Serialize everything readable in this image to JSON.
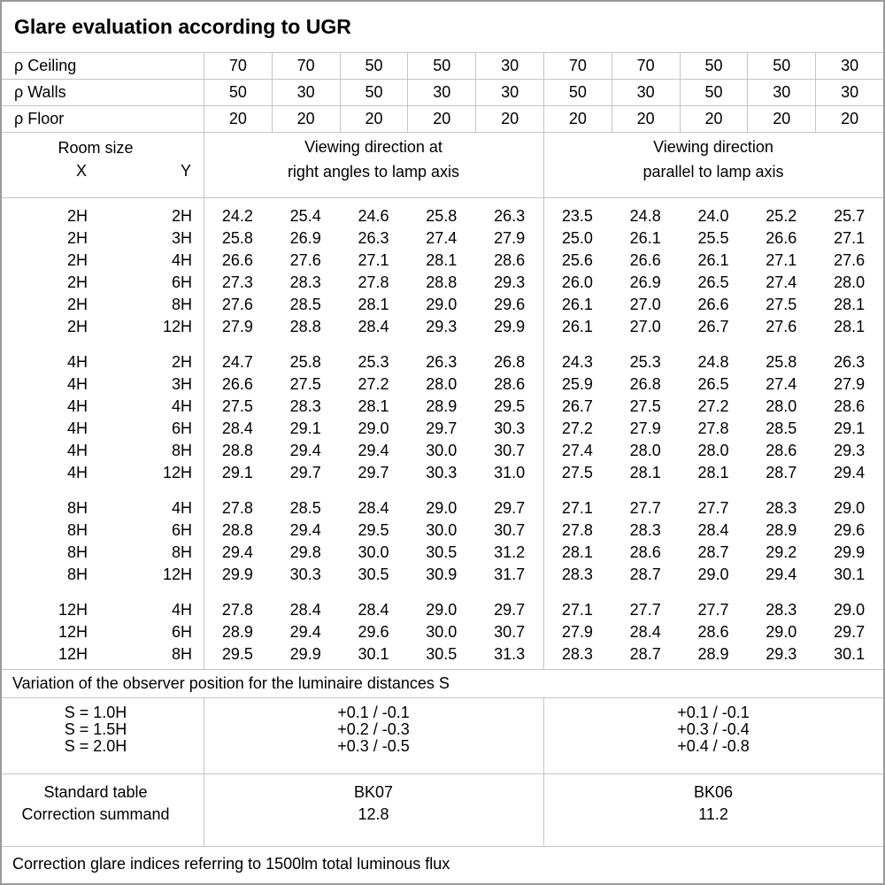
{
  "title": "Glare evaluation according to UGR",
  "reflectance_rows": [
    {
      "label": "ρ Ceiling",
      "values": [
        "70",
        "70",
        "50",
        "50",
        "30",
        "70",
        "70",
        "50",
        "50",
        "30"
      ]
    },
    {
      "label": "ρ Walls",
      "values": [
        "50",
        "30",
        "50",
        "30",
        "30",
        "50",
        "30",
        "50",
        "30",
        "30"
      ]
    },
    {
      "label": "ρ Floor",
      "values": [
        "20",
        "20",
        "20",
        "20",
        "20",
        "20",
        "20",
        "20",
        "20",
        "20"
      ]
    }
  ],
  "header": {
    "room_size_label": "Room size",
    "x_label": "X",
    "y_label": "Y",
    "left_direction": [
      "Viewing direction at",
      "right angles to lamp axis"
    ],
    "right_direction": [
      "Viewing direction",
      "parallel to lamp axis"
    ]
  },
  "ugr_groups": [
    {
      "rows": [
        {
          "x": "2H",
          "y": "2H",
          "values": [
            "24.2",
            "25.4",
            "24.6",
            "25.8",
            "26.3",
            "23.5",
            "24.8",
            "24.0",
            "25.2",
            "25.7"
          ]
        },
        {
          "x": "2H",
          "y": "3H",
          "values": [
            "25.8",
            "26.9",
            "26.3",
            "27.4",
            "27.9",
            "25.0",
            "26.1",
            "25.5",
            "26.6",
            "27.1"
          ]
        },
        {
          "x": "2H",
          "y": "4H",
          "values": [
            "26.6",
            "27.6",
            "27.1",
            "28.1",
            "28.6",
            "25.6",
            "26.6",
            "26.1",
            "27.1",
            "27.6"
          ]
        },
        {
          "x": "2H",
          "y": "6H",
          "values": [
            "27.3",
            "28.3",
            "27.8",
            "28.8",
            "29.3",
            "26.0",
            "26.9",
            "26.5",
            "27.4",
            "28.0"
          ]
        },
        {
          "x": "2H",
          "y": "8H",
          "values": [
            "27.6",
            "28.5",
            "28.1",
            "29.0",
            "29.6",
            "26.1",
            "27.0",
            "26.6",
            "27.5",
            "28.1"
          ]
        },
        {
          "x": "2H",
          "y": "12H",
          "values": [
            "27.9",
            "28.8",
            "28.4",
            "29.3",
            "29.9",
            "26.1",
            "27.0",
            "26.7",
            "27.6",
            "28.1"
          ]
        }
      ]
    },
    {
      "rows": [
        {
          "x": "4H",
          "y": "2H",
          "values": [
            "24.7",
            "25.8",
            "25.3",
            "26.3",
            "26.8",
            "24.3",
            "25.3",
            "24.8",
            "25.8",
            "26.3"
          ]
        },
        {
          "x": "4H",
          "y": "3H",
          "values": [
            "26.6",
            "27.5",
            "27.2",
            "28.0",
            "28.6",
            "25.9",
            "26.8",
            "26.5",
            "27.4",
            "27.9"
          ]
        },
        {
          "x": "4H",
          "y": "4H",
          "values": [
            "27.5",
            "28.3",
            "28.1",
            "28.9",
            "29.5",
            "26.7",
            "27.5",
            "27.2",
            "28.0",
            "28.6"
          ]
        },
        {
          "x": "4H",
          "y": "6H",
          "values": [
            "28.4",
            "29.1",
            "29.0",
            "29.7",
            "30.3",
            "27.2",
            "27.9",
            "27.8",
            "28.5",
            "29.1"
          ]
        },
        {
          "x": "4H",
          "y": "8H",
          "values": [
            "28.8",
            "29.4",
            "29.4",
            "30.0",
            "30.7",
            "27.4",
            "28.0",
            "28.0",
            "28.6",
            "29.3"
          ]
        },
        {
          "x": "4H",
          "y": "12H",
          "values": [
            "29.1",
            "29.7",
            "29.7",
            "30.3",
            "31.0",
            "27.5",
            "28.1",
            "28.1",
            "28.7",
            "29.4"
          ]
        }
      ]
    },
    {
      "rows": [
        {
          "x": "8H",
          "y": "4H",
          "values": [
            "27.8",
            "28.5",
            "28.4",
            "29.0",
            "29.7",
            "27.1",
            "27.7",
            "27.7",
            "28.3",
            "29.0"
          ]
        },
        {
          "x": "8H",
          "y": "6H",
          "values": [
            "28.8",
            "29.4",
            "29.5",
            "30.0",
            "30.7",
            "27.8",
            "28.3",
            "28.4",
            "28.9",
            "29.6"
          ]
        },
        {
          "x": "8H",
          "y": "8H",
          "values": [
            "29.4",
            "29.8",
            "30.0",
            "30.5",
            "31.2",
            "28.1",
            "28.6",
            "28.7",
            "29.2",
            "29.9"
          ]
        },
        {
          "x": "8H",
          "y": "12H",
          "values": [
            "29.9",
            "30.3",
            "30.5",
            "30.9",
            "31.7",
            "28.3",
            "28.7",
            "29.0",
            "29.4",
            "30.1"
          ]
        }
      ]
    },
    {
      "rows": [
        {
          "x": "12H",
          "y": "4H",
          "values": [
            "27.8",
            "28.4",
            "28.4",
            "29.0",
            "29.7",
            "27.1",
            "27.7",
            "27.7",
            "28.3",
            "29.0"
          ]
        },
        {
          "x": "12H",
          "y": "6H",
          "values": [
            "28.9",
            "29.4",
            "29.6",
            "30.0",
            "30.7",
            "27.9",
            "28.4",
            "28.6",
            "29.0",
            "29.7"
          ]
        },
        {
          "x": "12H",
          "y": "8H",
          "values": [
            "29.5",
            "29.9",
            "30.1",
            "30.5",
            "31.3",
            "28.3",
            "28.7",
            "28.9",
            "29.3",
            "30.1"
          ]
        }
      ]
    }
  ],
  "variation_note": "Variation of the observer position for the luminaire distances S",
  "spacing_rows": [
    {
      "label": "S = 1.0H",
      "left": "+0.1 / -0.1",
      "right": "+0.1 / -0.1"
    },
    {
      "label": "S = 1.5H",
      "left": "+0.2 / -0.3",
      "right": "+0.3 / -0.4"
    },
    {
      "label": "S = 2.0H",
      "left": "+0.3 / -0.5",
      "right": "+0.4 / -0.8"
    }
  ],
  "standard": {
    "labels": [
      "Standard table",
      "Correction summand"
    ],
    "left": [
      "BK07",
      "12.8"
    ],
    "right": [
      "BK06",
      "11.2"
    ]
  },
  "footer_note": "Correction glare indices referring to 1500lm total luminous flux",
  "colors": {
    "background": "#ffffff",
    "text": "#000000",
    "grid_line": "#c4c4c4",
    "outer_border": "#9a9a9a"
  }
}
